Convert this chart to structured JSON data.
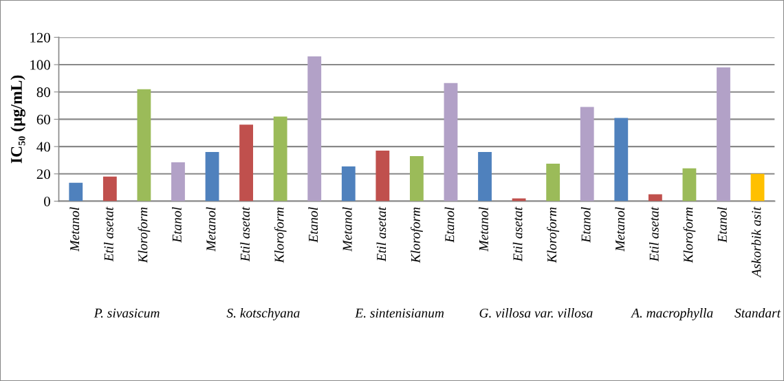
{
  "chart_data": {
    "type": "bar",
    "ylabel": "IC₅₀ (µg/mL)",
    "categories": [
      "Metanol",
      "Etil asetat",
      "Kloroform",
      "Etanol",
      "Metanol",
      "Etil asetat",
      "Kloroform",
      "Etanol",
      "Metanol",
      "Etil asetat",
      "Kloroform",
      "Etanol",
      "Metanol",
      "Etil asetat",
      "Kloroform",
      "Etanol",
      "Metanol",
      "Etil asetat",
      "Kloroform",
      "Etanol",
      "Askorbik asit"
    ],
    "values": [
      13.5,
      18,
      82,
      28.5,
      36,
      56,
      62,
      106,
      25.5,
      37,
      33,
      86.5,
      36,
      2,
      27.5,
      69,
      61,
      5,
      24,
      98,
      20
    ],
    "colors": [
      "#4f81bd",
      "#c0504d",
      "#9bbb59",
      "#b2a1c7",
      "#4f81bd",
      "#c0504d",
      "#9bbb59",
      "#b2a1c7",
      "#4f81bd",
      "#c0504d",
      "#9bbb59",
      "#b2a1c7",
      "#4f81bd",
      "#c0504d",
      "#9bbb59",
      "#b2a1c7",
      "#4f81bd",
      "#c0504d",
      "#9bbb59",
      "#b2a1c7",
      "#ffc000"
    ],
    "ylim": [
      0,
      120
    ],
    "yticks": [
      0,
      20,
      40,
      60,
      80,
      100,
      120
    ],
    "grid": "y",
    "annotations": [
      "P. sivasicum",
      "S. kotschyana",
      "E. sintenisianum",
      "G. villosa var. villosa",
      "A. macrophylla",
      "Standart"
    ]
  }
}
